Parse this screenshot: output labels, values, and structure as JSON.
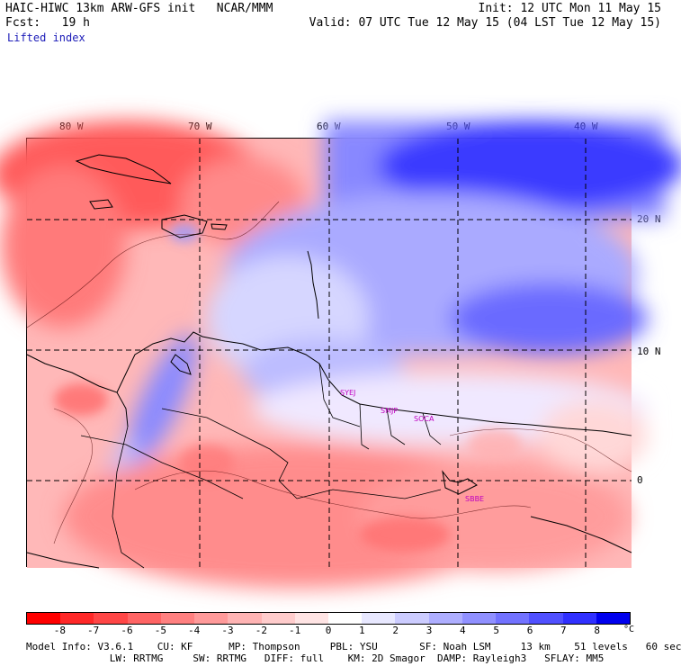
{
  "header": {
    "model_line": "HAIC-HIWC 13km ARW-GFS init   NCAR/MMM",
    "forecast_line": "Fcst:   19 h",
    "field_name": "Lifted index",
    "init_line": "Init: 12 UTC Mon 11 May 15",
    "valid_line": "Valid: 07 UTC Tue 12 May 15 (04 LST Tue 12 May 15)"
  },
  "map": {
    "longitude_labels": [
      "80 W",
      "70 W",
      "60 W",
      "50 W",
      "40 W"
    ],
    "latitude_labels": [
      "20 N",
      "10 N",
      "0"
    ],
    "stations": [
      "SYEJ",
      "SMJP",
      "SOCA",
      "SBBE"
    ]
  },
  "colorbar": {
    "ticks": [
      "-8",
      "-7",
      "-6",
      "-5",
      "-4",
      "-3",
      "-2",
      "-1",
      "0",
      "1",
      "2",
      "3",
      "4",
      "5",
      "6",
      "7",
      "8"
    ],
    "unit": "°C",
    "colors": [
      "#ff0000",
      "#ff2828",
      "#ff4646",
      "#ff6464",
      "#ff8080",
      "#ff9a9a",
      "#ffb4b4",
      "#ffcccc",
      "#ffe4e4",
      "#ffffff",
      "#e8e8ff",
      "#ccccff",
      "#aeaeff",
      "#9090ff",
      "#7272ff",
      "#5050ff",
      "#3030ff",
      "#0000ee"
    ]
  },
  "footer": {
    "line1": "Model Info: V3.6.1    CU: KF      MP: Thompson     PBL: YSU       SF: Noah LSM     13 km    51 levels   60 sec",
    "line2": "              LW: RRTMG     SW: RRTMG   DIFF: full    KM: 2D Smagor  DAMP: Rayleigh3   SFLAY: MM5"
  }
}
